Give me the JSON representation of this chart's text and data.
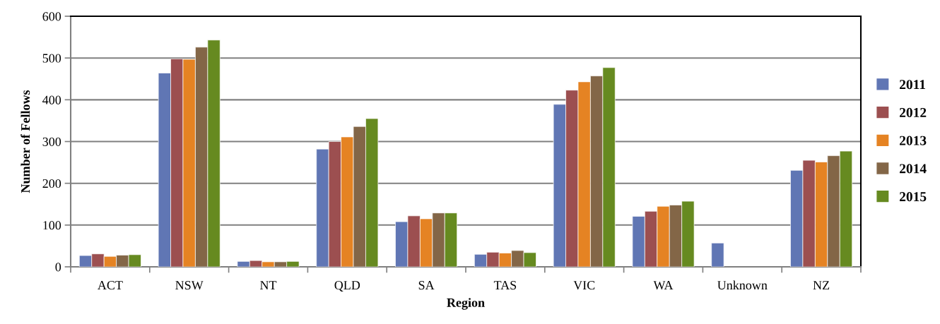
{
  "chart_data": {
    "type": "bar",
    "xlabel": "Region",
    "ylabel": "Number of Fellows",
    "categories": [
      "ACT",
      "NSW",
      "NT",
      "QLD",
      "SA",
      "TAS",
      "VIC",
      "WA",
      "Unknown",
      "NZ"
    ],
    "series": [
      {
        "name": "2011",
        "color": "#6076b4",
        "values": [
          27,
          464,
          13,
          282,
          108,
          30,
          389,
          121,
          57,
          231
        ]
      },
      {
        "name": "2012",
        "color": "#9c4f50",
        "values": [
          31,
          498,
          15,
          300,
          122,
          35,
          423,
          133,
          null,
          255
        ]
      },
      {
        "name": "2013",
        "color": "#e58323",
        "values": [
          25,
          497,
          12,
          311,
          115,
          33,
          443,
          145,
          null,
          251
        ]
      },
      {
        "name": "2014",
        "color": "#836647",
        "values": [
          28,
          526,
          12,
          336,
          129,
          39,
          457,
          148,
          null,
          266
        ]
      },
      {
        "name": "2015",
        "color": "#668a20",
        "values": [
          29,
          543,
          13,
          355,
          129,
          34,
          477,
          157,
          null,
          277
        ]
      }
    ],
    "ylim": [
      0,
      600
    ],
    "yticks": [
      0,
      100,
      200,
      300,
      400,
      500,
      600
    ],
    "grid": "y",
    "legend": "right"
  }
}
